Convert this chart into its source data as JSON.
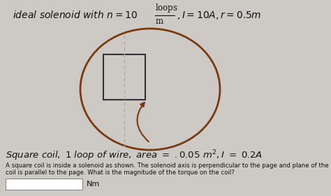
{
  "background_color": "#cdc9c4",
  "ellipse_color": "#7a3a10",
  "square_color": "#333333",
  "arrow_color": "#7a3a10",
  "dashed_color": "#aaaaaa",
  "text_color": "#111111",
  "answer_label": "Nm"
}
